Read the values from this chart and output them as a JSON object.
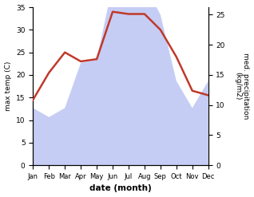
{
  "months": [
    "Jan",
    "Feb",
    "Mar",
    "Apr",
    "May",
    "Jun",
    "Jul",
    "Aug",
    "Sep",
    "Oct",
    "Nov",
    "Dec"
  ],
  "temperature": [
    14.5,
    20.5,
    25.0,
    23.0,
    23.5,
    34.0,
    33.5,
    33.5,
    30.0,
    24.0,
    16.5,
    15.5
  ],
  "precipitation": [
    9.5,
    8.0,
    9.5,
    17.0,
    17.5,
    30.0,
    33.5,
    30.0,
    25.0,
    14.0,
    9.5,
    14.0
  ],
  "temp_color": "#c0392b",
  "precip_fill_color": "#c5cdf5",
  "temp_ylim": [
    0,
    35
  ],
  "precip_ylim": [
    0,
    26.25
  ],
  "ylabel_left": "max temp (C)",
  "ylabel_right": "med. precipitation\n(kg/m2)",
  "xlabel": "date (month)",
  "background_color": "#ffffff",
  "temp_yticks": [
    0,
    5,
    10,
    15,
    20,
    25,
    30,
    35
  ],
  "precip_yticks": [
    0,
    5,
    10,
    15,
    20,
    25
  ],
  "line_width": 1.8
}
